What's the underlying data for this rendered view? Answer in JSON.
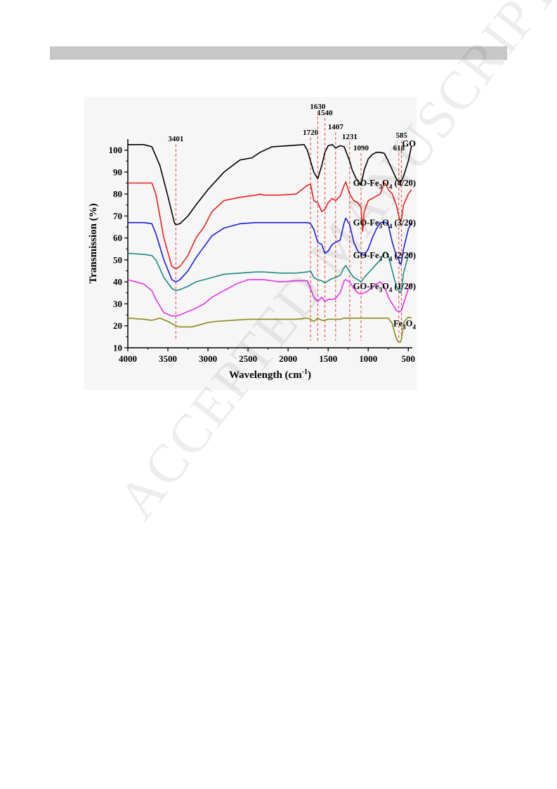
{
  "header": {
    "bar_color": "#c8c8c8"
  },
  "watermark": {
    "text": "ACCEPTED MANUSCRIPT"
  },
  "chart_data": {
    "type": "line",
    "title": "",
    "xlabel": "Wavelength (cm",
    "xlabel_sup": "-1",
    "xlabel_close": ")",
    "ylabel": "Transmission (%)",
    "xlim": [
      4000,
      450
    ],
    "xticks": [
      "4000",
      "3500",
      "3000",
      "2500",
      "2000",
      "1500",
      "1000",
      "500"
    ],
    "xtick_values": [
      4000,
      3500,
      3000,
      2500,
      2000,
      1500,
      1000,
      500
    ],
    "ylim": [
      10,
      105
    ],
    "yticks": [
      "10",
      "20",
      "30",
      "40",
      "50",
      "60",
      "70",
      "80",
      "90",
      "100"
    ],
    "ytick_values": [
      10,
      20,
      30,
      40,
      50,
      60,
      70,
      80,
      90,
      100
    ],
    "grid": false,
    "legend_placement": "right of curves",
    "peaks": [
      {
        "label": "3401",
        "x": 3401
      },
      {
        "label": "1720",
        "x": 1720
      },
      {
        "label": "1630",
        "x": 1630
      },
      {
        "label": "1540",
        "x": 1540
      },
      {
        "label": "1407",
        "x": 1407
      },
      {
        "label": "1231",
        "x": 1231
      },
      {
        "label": "1090",
        "x": 1090
      },
      {
        "label": "618",
        "x": 618
      },
      {
        "label": "585",
        "x": 585
      }
    ],
    "peak_line_color": "#e8312a",
    "series": [
      {
        "name": "GO",
        "label_parts": [
          "GO"
        ],
        "color": "#000000",
        "label_y": 103,
        "x": [
          4000,
          3800,
          3700,
          3600,
          3500,
          3420,
          3401,
          3350,
          3250,
          3150,
          3000,
          2800,
          2600,
          2450,
          2350,
          2200,
          2000,
          1800,
          1760,
          1720,
          1680,
          1630,
          1580,
          1540,
          1500,
          1450,
          1407,
          1350,
          1300,
          1231,
          1200,
          1150,
          1110,
          1090,
          1050,
          1000,
          950,
          900,
          850,
          800,
          750,
          700,
          650,
          618,
          600,
          585,
          560,
          500,
          460
        ],
        "y": [
          102.5,
          102.5,
          101.5,
          93,
          79,
          67,
          66,
          66.5,
          70,
          75,
          82,
          90,
          95.5,
          96.5,
          99,
          101.5,
          102,
          102.5,
          100,
          95,
          90,
          87,
          93,
          99,
          102,
          102.5,
          101,
          102,
          101.5,
          95,
          91,
          87,
          85,
          84,
          91,
          96,
          98,
          99,
          99,
          98.5,
          95,
          91,
          87,
          85.5,
          85.5,
          86,
          88,
          95,
          102
        ]
      },
      {
        "name": "GO-Fe3O4 (4/20)",
        "label_parts": [
          "GO-Fe",
          "3",
          "O",
          "4",
          " (4/20)"
        ],
        "color": "#e8211c",
        "label_y": 85,
        "x": [
          4000,
          3800,
          3700,
          3650,
          3550,
          3450,
          3401,
          3350,
          3250,
          3150,
          3050,
          2950,
          2800,
          2600,
          2400,
          2350,
          2300,
          2100,
          1900,
          1760,
          1720,
          1680,
          1630,
          1580,
          1540,
          1500,
          1450,
          1407,
          1350,
          1300,
          1280,
          1231,
          1180,
          1130,
          1090,
          1070,
          1050,
          1000,
          950,
          900,
          850,
          800,
          780,
          750,
          700,
          650,
          618,
          600,
          585,
          560,
          500,
          460
        ],
        "y": [
          85,
          85,
          85,
          80,
          60,
          47,
          46,
          47,
          52,
          60,
          65,
          72,
          77,
          78.5,
          79.5,
          80,
          79.5,
          79.5,
          80,
          84,
          84.5,
          77,
          76,
          72,
          73,
          76,
          78,
          77,
          79,
          84,
          85.5,
          80,
          77,
          76,
          74,
          63,
          72,
          77,
          78,
          79,
          80,
          85,
          84.5,
          82,
          80,
          75,
          70,
          68,
          68.5,
          75,
          80,
          82
        ]
      },
      {
        "name": "GO-Fe3O4 (3/20)",
        "label_parts": [
          "GO-Fe",
          "3",
          "O",
          "4",
          " (3/20)"
        ],
        "color": "#1a1ee0",
        "label_y": 67,
        "x": [
          4000,
          3800,
          3700,
          3650,
          3550,
          3450,
          3401,
          3350,
          3250,
          3150,
          3050,
          2950,
          2800,
          2600,
          2400,
          2300,
          2100,
          1900,
          1760,
          1720,
          1680,
          1630,
          1580,
          1540,
          1500,
          1450,
          1407,
          1350,
          1300,
          1280,
          1231,
          1180,
          1130,
          1090,
          1050,
          1000,
          950,
          900,
          850,
          800,
          780,
          750,
          700,
          650,
          618,
          600,
          585,
          560,
          500,
          460
        ],
        "y": [
          67,
          67,
          66.5,
          62,
          50,
          41,
          40,
          41,
          45,
          51,
          56,
          61,
          64.5,
          66.5,
          67,
          67,
          67,
          67,
          67,
          66.5,
          64,
          58,
          57,
          53,
          54,
          57,
          58,
          59,
          67,
          69,
          66,
          58,
          54,
          53,
          52,
          55,
          60,
          64,
          67,
          67,
          67,
          66,
          58,
          52,
          50,
          48,
          49,
          55,
          64,
          67
        ]
      },
      {
        "name": "GO-Fe3O4 (2/20)",
        "label_parts": [
          "GO-Fe",
          "3",
          "O",
          "4",
          " (2/20)"
        ],
        "color": "#1e8a82",
        "label_y": 52,
        "x": [
          4000,
          3800,
          3700,
          3650,
          3550,
          3450,
          3401,
          3350,
          3250,
          3150,
          3050,
          2950,
          2800,
          2600,
          2400,
          2300,
          2100,
          1900,
          1760,
          1720,
          1680,
          1630,
          1580,
          1540,
          1500,
          1450,
          1407,
          1350,
          1300,
          1280,
          1231,
          1180,
          1130,
          1090,
          1050,
          1000,
          950,
          900,
          850,
          800,
          780,
          750,
          700,
          650,
          618,
          600,
          585,
          560,
          500,
          460
        ],
        "y": [
          53,
          52.5,
          52,
          50,
          42,
          37,
          36,
          36.5,
          38,
          40,
          41,
          42,
          43.5,
          44,
          44.5,
          44.5,
          44,
          44,
          44.5,
          45,
          42,
          41,
          40.5,
          39.5,
          40.5,
          41.5,
          42,
          43,
          46.5,
          47.5,
          44.5,
          42,
          41,
          40,
          42,
          44,
          46,
          48,
          50,
          53.5,
          53.5,
          52,
          45,
          38,
          36,
          35,
          36,
          44,
          52,
          53
        ]
      },
      {
        "name": "GO-Fe3O4 (1/20)",
        "label_parts": [
          "GO-Fe",
          "3",
          "O",
          "4",
          " (1/20)"
        ],
        "color": "#e633e6",
        "label_y": 38,
        "x": [
          4000,
          3800,
          3700,
          3650,
          3550,
          3450,
          3401,
          3350,
          3250,
          3150,
          3050,
          2950,
          2800,
          2650,
          2500,
          2300,
          2100,
          1900,
          1760,
          1720,
          1680,
          1630,
          1580,
          1540,
          1500,
          1450,
          1407,
          1350,
          1300,
          1280,
          1231,
          1180,
          1130,
          1090,
          1050,
          1000,
          950,
          900,
          850,
          800,
          780,
          750,
          700,
          650,
          618,
          600,
          585,
          560,
          500,
          460
        ],
        "y": [
          41,
          39,
          36,
          32,
          26,
          24.5,
          24.5,
          25,
          26.5,
          28,
          30,
          33,
          36,
          39,
          41,
          41,
          40,
          40.5,
          40.5,
          37,
          33,
          31,
          33,
          31,
          32,
          32,
          32.5,
          35,
          40.5,
          41,
          40,
          37,
          35,
          34.5,
          35,
          36,
          37.5,
          39,
          40,
          38,
          36,
          33,
          30,
          27,
          26.5,
          26.5,
          27,
          30,
          37,
          39
        ]
      },
      {
        "name": "Fe3O4",
        "label_parts": [
          "Fe",
          "3",
          "O",
          "4"
        ],
        "color": "#8a8a1a",
        "label_y": 21,
        "x": [
          4000,
          3800,
          3700,
          3600,
          3500,
          3450,
          3401,
          3350,
          3300,
          3200,
          3100,
          3000,
          2900,
          2700,
          2500,
          2300,
          2100,
          1900,
          1760,
          1720,
          1680,
          1630,
          1580,
          1540,
          1500,
          1450,
          1407,
          1350,
          1300,
          1231,
          1180,
          1130,
          1090,
          1050,
          1000,
          950,
          900,
          850,
          800,
          750,
          700,
          680,
          660,
          640,
          618,
          600,
          585,
          570,
          550,
          500,
          460
        ],
        "y": [
          23.5,
          23,
          22.5,
          23.5,
          22,
          21,
          20,
          19.5,
          19.5,
          19.5,
          20.5,
          21.5,
          22,
          22.5,
          23,
          23,
          23,
          23,
          23.5,
          23,
          22,
          23.5,
          22.5,
          22.5,
          23,
          23,
          23,
          23,
          23.5,
          23.5,
          23.5,
          23.5,
          23.5,
          23.5,
          23.5,
          23.5,
          23.5,
          23.5,
          23.5,
          23.5,
          21,
          18,
          15.5,
          13.5,
          12.5,
          12.5,
          14,
          18,
          22,
          24,
          23.5
        ]
      }
    ]
  }
}
